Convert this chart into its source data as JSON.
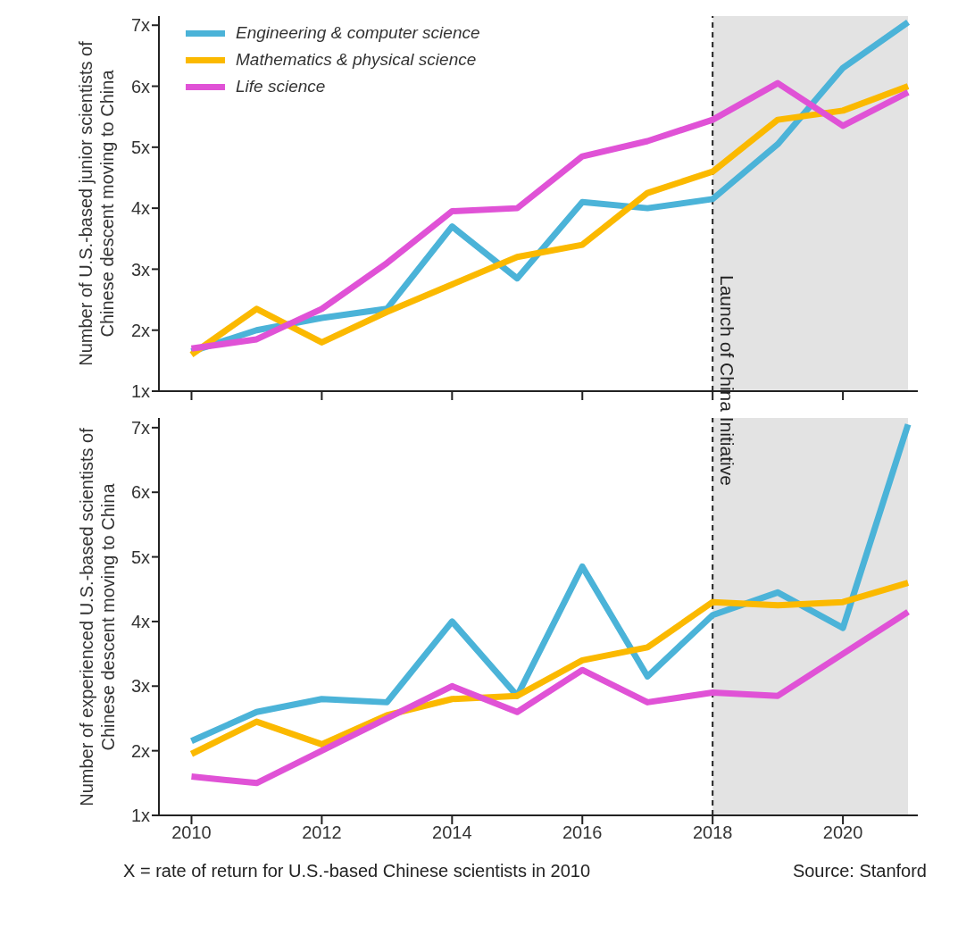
{
  "chart_data": [
    {
      "type": "line",
      "ylabel": "Number of U.S.-based junior scientists of Chinese descent moving to China",
      "x": [
        2010,
        2011,
        2012,
        2013,
        2014,
        2015,
        2016,
        2017,
        2018,
        2019,
        2020,
        2021
      ],
      "series": [
        {
          "name": "Engineering & computer science",
          "color": "#4bb3d8",
          "values": [
            1.65,
            2.0,
            2.2,
            2.35,
            3.7,
            2.85,
            4.1,
            4.0,
            4.15,
            5.05,
            6.3,
            7.05
          ]
        },
        {
          "name": "Mathematics & physical science",
          "color": "#fbb900",
          "values": [
            1.6,
            2.35,
            1.8,
            2.3,
            2.75,
            3.2,
            3.4,
            4.25,
            4.6,
            5.45,
            5.6,
            6.0
          ]
        },
        {
          "name": "Life science",
          "color": "#e052d6",
          "values": [
            1.7,
            1.85,
            2.35,
            3.1,
            3.95,
            4.0,
            4.85,
            5.1,
            5.45,
            6.05,
            5.35,
            5.9
          ]
        }
      ],
      "xlim": [
        2009.5,
        2021.15
      ],
      "xticks": [
        2010,
        2012,
        2014,
        2016,
        2018,
        2020
      ],
      "ylim": [
        1,
        7.15
      ],
      "yticks": [
        {
          "value": 1,
          "label": "1x"
        },
        {
          "value": 2,
          "label": "2x"
        },
        {
          "value": 3,
          "label": "3x"
        },
        {
          "value": 4,
          "label": "4x"
        },
        {
          "value": 5,
          "label": "5x"
        },
        {
          "value": 6,
          "label": "6x"
        },
        {
          "value": 7,
          "label": "7x"
        }
      ],
      "tick_labels": "y",
      "legend": "top left",
      "line_style": "solid",
      "ref_lines": [
        {
          "axis": "x",
          "value": 2018,
          "label": "Launch of China Initiative",
          "color": "#222222",
          "line_style": "dashed"
        }
      ],
      "bands": [
        {
          "axis": "x",
          "from": 2018,
          "to": 2021,
          "color": "#e3e3e3"
        }
      ]
    },
    {
      "type": "line",
      "ylabel": "Number of experienced U.S.-based scientists of Chinese descent moving to China",
      "x": [
        2010,
        2011,
        2012,
        2013,
        2014,
        2015,
        2016,
        2017,
        2018,
        2019,
        2020,
        2021
      ],
      "series": [
        {
          "color": "#4bb3d8",
          "values": [
            2.15,
            2.6,
            2.8,
            2.75,
            4.0,
            2.85,
            4.85,
            3.15,
            4.1,
            4.45,
            3.9,
            7.05
          ]
        },
        {
          "color": "#fbb900",
          "values": [
            1.95,
            2.45,
            2.1,
            2.55,
            2.8,
            2.85,
            3.4,
            3.6,
            4.3,
            4.25,
            4.3,
            4.6
          ]
        },
        {
          "color": "#e052d6",
          "values": [
            1.6,
            1.5,
            2.0,
            2.5,
            3.0,
            2.6,
            3.25,
            2.75,
            2.9,
            2.85,
            3.5,
            4.15
          ]
        }
      ],
      "xlim": [
        2009.5,
        2021.15
      ],
      "xticks": [
        2010,
        2012,
        2014,
        2016,
        2018,
        2020
      ],
      "ylim": [
        1,
        7.15
      ],
      "yticks": [
        {
          "value": 1,
          "label": "1x"
        },
        {
          "value": 2,
          "label": "2x"
        },
        {
          "value": 3,
          "label": "3x"
        },
        {
          "value": 4,
          "label": "4x"
        },
        {
          "value": 5,
          "label": "5x"
        },
        {
          "value": 6,
          "label": "6x"
        },
        {
          "value": 7,
          "label": "7x"
        }
      ],
      "line_style": "solid",
      "ref_lines": [
        {
          "axis": "x",
          "value": 2018,
          "color": "#222222",
          "line_style": "dashed"
        }
      ],
      "bands": [
        {
          "axis": "x",
          "from": 2018,
          "to": 2021,
          "color": "#e3e3e3"
        }
      ],
      "annotations": [
        "X = rate of return for U.S.-based Chinese scientists in 2010",
        "Source: Stanford"
      ]
    }
  ]
}
